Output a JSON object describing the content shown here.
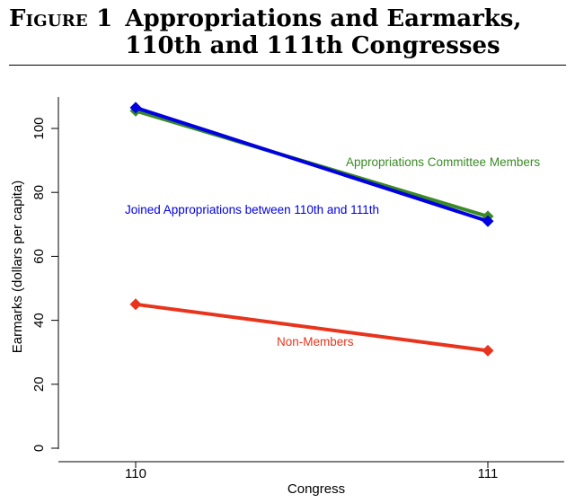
{
  "figure": {
    "label": "Figure 1",
    "title": "Appropriations and Earmarks, 110th and 111th Congresses"
  },
  "chart_data": {
    "type": "line",
    "x": [
      "110",
      "111"
    ],
    "xlabel": "Congress",
    "ylabel": "Earmarks (dollars per capita)",
    "ylim": [
      0,
      110
    ],
    "y_ticks": [
      0,
      20,
      40,
      60,
      80,
      100
    ],
    "grid": false,
    "series": [
      {
        "name": "Appropriations Committee Members",
        "values": [
          105.5,
          72.5
        ],
        "color": "#3a8a26"
      },
      {
        "name": "Joined Appropriations between 110th and 111th",
        "values": [
          106.5,
          71
        ],
        "color": "#0000e0"
      },
      {
        "name": "Non-Members",
        "values": [
          45,
          30.5
        ],
        "color": "#e8341c"
      }
    ]
  }
}
